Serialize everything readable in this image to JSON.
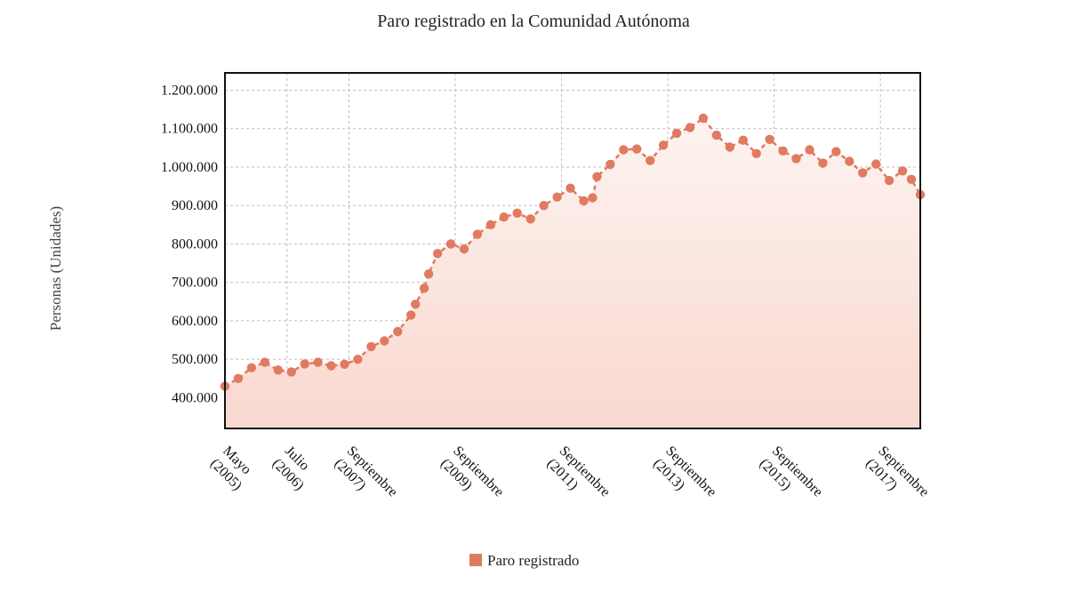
{
  "chart_data": {
    "type": "area",
    "title": "Paro registrado en la Comunidad Autónoma",
    "xlabel": "",
    "ylabel": "Personas (Unidades)",
    "ylim": [
      320000,
      1245000
    ],
    "yticks": [
      400000,
      500000,
      600000,
      700000,
      800000,
      900000,
      1000000,
      1100000,
      1200000
    ],
    "ytick_labels": [
      "400.000",
      "500.000",
      "600.000",
      "700.000",
      "800.000",
      "900.000",
      "1.000.000",
      "1.100.000",
      "1.200.000"
    ],
    "xticks": [
      {
        "date": "2005-05",
        "label": [
          "Mayo",
          "(2005)"
        ]
      },
      {
        "date": "2006-07",
        "label": [
          "Julio",
          "(2006)"
        ]
      },
      {
        "date": "2007-09",
        "label": [
          "Septiembre",
          "(2007)"
        ]
      },
      {
        "date": "2009-09",
        "label": [
          "Septiembre",
          "(2009)"
        ]
      },
      {
        "date": "2011-09",
        "label": [
          "Septiembre",
          "(2011)"
        ]
      },
      {
        "date": "2013-09",
        "label": [
          "Septiembre",
          "(2013)"
        ]
      },
      {
        "date": "2015-09",
        "label": [
          "Septiembre",
          "(2015)"
        ]
      },
      {
        "date": "2017-09",
        "label": [
          "Septiembre",
          "(2017)"
        ]
      }
    ],
    "xlim": [
      "2005-05",
      "2018-06"
    ],
    "grid": true,
    "legend_position": "bottom-center",
    "colors": {
      "series": "#e07a60",
      "area_top": "#fdf1ee",
      "area_bottom": "#f9d9d1"
    },
    "series": [
      {
        "name": "Paro registrado",
        "x": [
          "2005-05",
          "2005-08",
          "2005-11",
          "2006-02",
          "2006-05",
          "2006-08",
          "2006-11",
          "2007-02",
          "2007-05",
          "2007-08",
          "2007-11",
          "2008-02",
          "2008-05",
          "2008-08",
          "2008-11",
          "2008-12",
          "2009-02",
          "2009-03",
          "2009-05",
          "2009-08",
          "2009-11",
          "2010-02",
          "2010-05",
          "2010-08",
          "2010-11",
          "2011-02",
          "2011-05",
          "2011-08",
          "2011-11",
          "2012-02",
          "2012-04",
          "2012-05",
          "2012-08",
          "2012-11",
          "2013-02",
          "2013-05",
          "2013-08",
          "2013-11",
          "2014-02",
          "2014-05",
          "2014-08",
          "2014-11",
          "2015-02",
          "2015-05",
          "2015-08",
          "2015-11",
          "2016-02",
          "2016-05",
          "2016-08",
          "2016-11",
          "2017-02",
          "2017-05",
          "2017-08",
          "2017-11",
          "2018-02",
          "2018-04",
          "2018-06"
        ],
        "values": [
          430000,
          450000,
          478000,
          492000,
          472000,
          467000,
          488000,
          492000,
          483000,
          487000,
          500000,
          533000,
          548000,
          572000,
          615000,
          643000,
          685000,
          722000,
          775000,
          800000,
          787000,
          825000,
          850000,
          870000,
          880000,
          865000,
          900000,
          922000,
          945000,
          912000,
          920000,
          975000,
          1007000,
          1045000,
          1047000,
          1017000,
          1057000,
          1088000,
          1103000,
          1127000,
          1083000,
          1052000,
          1070000,
          1035000,
          1072000,
          1042000,
          1022000,
          1045000,
          1010000,
          1040000,
          1015000,
          985000,
          1008000,
          965000,
          990000,
          968000,
          928000
        ]
      }
    ],
    "legend": [
      {
        "name": "Paro registrado",
        "color": "#e07a60"
      }
    ]
  }
}
